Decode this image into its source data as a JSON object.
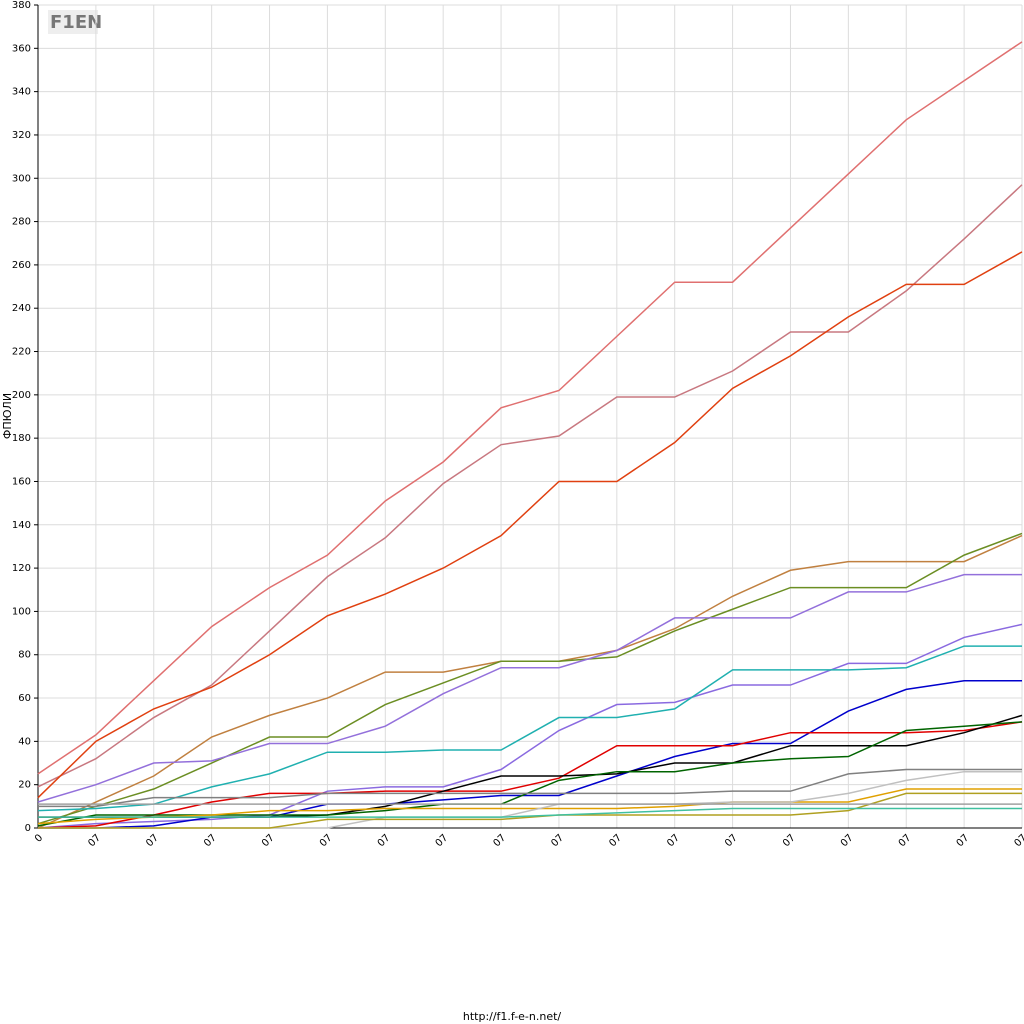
{
  "logo": "F1EN",
  "footer": "http://f1.f-e-n.net/",
  "chart_data": {
    "type": "line",
    "y_label": "ФПЮЛИ",
    "categories": [
      "0",
      "07",
      "07",
      "07",
      "07",
      "07",
      "07",
      "07",
      "07",
      "07",
      "07",
      "07",
      "07",
      "07",
      "07",
      "07",
      "07",
      "07"
    ],
    "ylim": [
      0,
      380
    ],
    "yticks": [
      0,
      20,
      40,
      60,
      80,
      100,
      120,
      140,
      160,
      180,
      200,
      220,
      240,
      260,
      280,
      300,
      320,
      340,
      360,
      380
    ],
    "grid": true,
    "series": [
      {
        "color": "#e07070",
        "values": [
          25,
          43,
          68,
          93,
          111,
          126,
          151,
          169,
          194,
          202,
          227,
          252,
          252,
          277,
          302,
          327,
          345,
          363
        ]
      },
      {
        "color": "#c87880",
        "values": [
          19,
          32,
          51,
          66,
          91,
          116,
          134,
          159,
          177,
          181,
          199,
          199,
          211,
          229,
          229,
          248,
          272,
          297
        ]
      },
      {
        "color": "#e04010",
        "values": [
          14,
          40,
          55,
          65,
          80,
          98,
          108,
          120,
          135,
          160,
          160,
          178,
          203,
          218,
          236,
          251,
          251,
          266
        ]
      },
      {
        "color": "#c08040",
        "values": [
          0,
          12,
          24,
          42,
          52,
          60,
          72,
          72,
          77,
          77,
          82,
          92,
          107,
          119,
          123,
          123,
          123,
          135
        ]
      },
      {
        "color": "#6b8e23",
        "values": [
          2,
          10,
          18,
          30,
          42,
          42,
          57,
          67,
          77,
          77,
          79,
          91,
          101,
          111,
          111,
          111,
          126,
          136
        ]
      },
      {
        "color": "#9370db",
        "values": [
          12,
          20,
          30,
          31,
          39,
          39,
          47,
          62,
          74,
          74,
          82,
          97,
          97,
          97,
          109,
          109,
          117,
          117
        ]
      },
      {
        "color": "#8a6ae0",
        "values": [
          0,
          2,
          3,
          4,
          6,
          17,
          19,
          19,
          27,
          45,
          57,
          58,
          66,
          66,
          76,
          76,
          88,
          94
        ]
      },
      {
        "color": "#20b0b0",
        "values": [
          8,
          9,
          11,
          19,
          25,
          35,
          35,
          36,
          36,
          51,
          51,
          55,
          73,
          73,
          73,
          74,
          84,
          84
        ]
      },
      {
        "color": "#0000cc",
        "values": [
          0,
          0,
          1,
          5,
          5,
          11,
          11,
          13,
          15,
          15,
          24,
          33,
          39,
          39,
          54,
          64,
          68,
          68
        ]
      },
      {
        "color": "#e00000",
        "values": [
          0,
          1,
          6,
          12,
          16,
          16,
          17,
          17,
          17,
          23,
          38,
          38,
          38,
          44,
          44,
          44,
          45,
          49
        ]
      },
      {
        "color": "#000000",
        "values": [
          5,
          5,
          5,
          5,
          5,
          6,
          10,
          17,
          24,
          24,
          25,
          30,
          30,
          38,
          38,
          38,
          44,
          52
        ]
      },
      {
        "color": "#006400",
        "values": [
          1,
          6,
          6,
          6,
          6,
          6,
          8,
          11,
          11,
          22,
          26,
          26,
          30,
          32,
          33,
          45,
          47,
          49
        ]
      },
      {
        "color": "#808080",
        "values": [
          10,
          10,
          14,
          14,
          14,
          16,
          16,
          16,
          16,
          16,
          16,
          16,
          17,
          17,
          25,
          27,
          27,
          27
        ]
      },
      {
        "color": "#e0a000",
        "values": [
          2,
          4,
          5,
          6,
          8,
          8,
          9,
          9,
          9,
          9,
          9,
          10,
          12,
          12,
          12,
          18,
          18,
          18
        ]
      },
      {
        "color": "#c0c0c0",
        "values": [
          0,
          0,
          0,
          0,
          0,
          0,
          5,
          5,
          5,
          11,
          11,
          11,
          12,
          12,
          16,
          22,
          26,
          26
        ]
      },
      {
        "color": "#b0a020",
        "values": [
          0,
          0,
          0,
          0,
          0,
          4,
          4,
          4,
          4,
          6,
          6,
          6,
          6,
          6,
          8,
          16,
          16,
          16
        ]
      },
      {
        "color": "#a0a0a0",
        "values": [
          11,
          11,
          11,
          11,
          11,
          11,
          11,
          11,
          11,
          11,
          11,
          11,
          11,
          11,
          11,
          11,
          11,
          11
        ]
      },
      {
        "color": "#40c0a0",
        "values": [
          5,
          5,
          5,
          5,
          5,
          5,
          5,
          5,
          5,
          6,
          7,
          8,
          9,
          9,
          9,
          9,
          9,
          9
        ]
      }
    ]
  }
}
